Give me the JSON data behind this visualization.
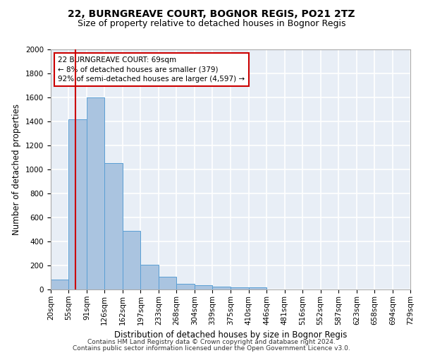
{
  "title_line1": "22, BURNGREAVE COURT, BOGNOR REGIS, PO21 2TZ",
  "title_line2": "Size of property relative to detached houses in Bognor Regis",
  "xlabel": "Distribution of detached houses by size in Bognor Regis",
  "ylabel": "Number of detached properties",
  "footnote1": "Contains HM Land Registry data © Crown copyright and database right 2024.",
  "footnote2": "Contains public sector information licensed under the Open Government Licence v3.0.",
  "annotation_line1": "22 BURNGREAVE COURT: 69sqm",
  "annotation_line2": "← 8% of detached houses are smaller (379)",
  "annotation_line3": "92% of semi-detached houses are larger (4,597) →",
  "bar_edges": [
    20,
    55,
    91,
    126,
    162,
    197,
    233,
    268,
    304,
    339,
    375,
    410,
    446,
    481,
    516,
    552,
    587,
    623,
    658,
    694,
    729
  ],
  "bar_heights": [
    80,
    1420,
    1600,
    1050,
    490,
    205,
    105,
    50,
    35,
    25,
    20,
    15,
    0,
    0,
    0,
    0,
    0,
    0,
    0,
    0
  ],
  "bar_color": "#aac4e0",
  "bar_edge_color": "#5a9fd4",
  "vline_x": 69,
  "vline_color": "#cc0000",
  "ylim": [
    0,
    2000
  ],
  "yticks": [
    0,
    200,
    400,
    600,
    800,
    1000,
    1200,
    1400,
    1600,
    1800,
    2000
  ],
  "annotation_box_color": "#cc0000",
  "background_color": "#e8eef6",
  "grid_color": "#ffffff",
  "title_fontsize": 10,
  "subtitle_fontsize": 9,
  "axis_label_fontsize": 8.5,
  "tick_fontsize": 7.5,
  "annotation_fontsize": 7.5,
  "footnote_fontsize": 6.5
}
